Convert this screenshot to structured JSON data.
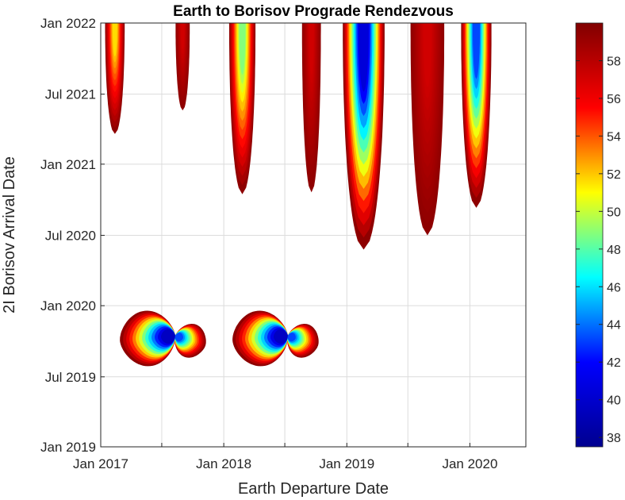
{
  "chart_data": {
    "type": "contour",
    "title": "Earth to Borisov Prograde Rendezvous",
    "xlabel": "Earth Departure Date",
    "ylabel": "2I Borisov Arrival Date",
    "x_ticks": [
      "Jan 2017",
      "Jan 2018",
      "Jan 2019",
      "Jan 2020"
    ],
    "y_ticks": [
      "Jan 2019",
      "Jul 2019",
      "Jan 2020",
      "Jul 2020",
      "Jan 2021",
      "Jul 2021",
      "Jan 2022"
    ],
    "xlim": [
      "2017-01-01",
      "2020-06-15"
    ],
    "ylim": [
      "2019-01-01",
      "2022-01-01"
    ],
    "grid": true,
    "colormap": "jet",
    "colorbar": {
      "range": [
        37.5,
        60
      ],
      "ticks": [
        "38",
        "40",
        "42",
        "44",
        "46",
        "48",
        "50",
        "52",
        "54",
        "56",
        "58"
      ],
      "colors": [
        "#00008f",
        "#0000ff",
        "#00ffff",
        "#ffff00",
        "#ff0000",
        "#800000"
      ]
    },
    "regions": [
      {
        "shape": "plume",
        "center_x": "2017-02-12",
        "top_halfwidth_days": 29,
        "bottom": "2021-03-20",
        "min_value": 51
      },
      {
        "shape": "plume",
        "center_x": "2017-09-01",
        "top_halfwidth_days": 21,
        "bottom": "2021-05-20",
        "min_value": 57
      },
      {
        "shape": "plume",
        "center_x": "2018-02-25",
        "top_halfwidth_days": 39,
        "bottom": "2020-10-15",
        "min_value": 48
      },
      {
        "shape": "plume",
        "center_x": "2018-09-18",
        "top_halfwidth_days": 28,
        "bottom": "2020-10-20",
        "min_value": 57
      },
      {
        "shape": "plume",
        "center_x": "2019-02-20",
        "top_halfwidth_days": 62,
        "bottom": "2020-05-25",
        "min_value": 39
      },
      {
        "shape": "plume",
        "center_x": "2019-08-28",
        "top_halfwidth_days": 50,
        "bottom": "2020-07-01",
        "min_value": 57
      },
      {
        "shape": "plume",
        "center_x": "2020-01-20",
        "top_halfwidth_days": 45,
        "bottom": "2020-09-10",
        "min_value": 42
      },
      {
        "shape": "bowtie",
        "pinch_x": "2017-08-10",
        "pinch_y": "2019-10-15",
        "min_value": 38
      },
      {
        "shape": "bowtie",
        "pinch_x": "2018-07-10",
        "pinch_y": "2019-10-15",
        "min_value": 38
      }
    ]
  }
}
